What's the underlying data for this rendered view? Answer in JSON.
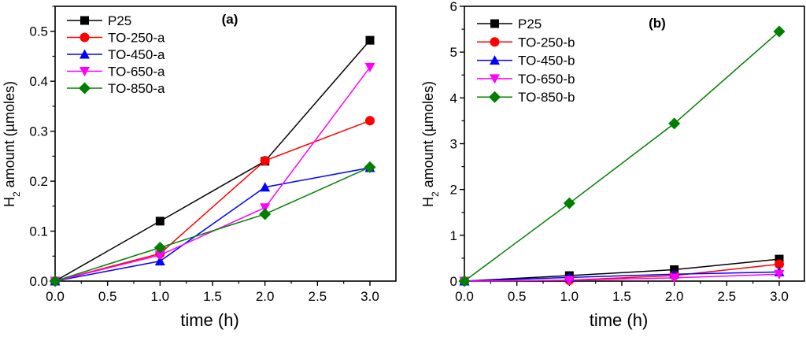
{
  "chart_data": [
    {
      "type": "line",
      "panel_label": "(a)",
      "title": "",
      "xlabel": "time (h)",
      "ylabel_prefix": "H",
      "ylabel_subscript": "2",
      "ylabel_suffix": " amount (µmoles)",
      "xlim": [
        0,
        3.25
      ],
      "ylim": [
        0,
        0.55
      ],
      "xticks": [
        0.0,
        0.5,
        1.0,
        1.5,
        2.0,
        2.5,
        3.0
      ],
      "xtick_labels": [
        "0.0",
        "0.5",
        "1.0",
        "1.5",
        "2.0",
        "2.5",
        "3.0"
      ],
      "yticks": [
        0.0,
        0.1,
        0.2,
        0.3,
        0.4,
        0.5
      ],
      "ytick_labels": [
        "0.0",
        "0.1",
        "0.2",
        "0.3",
        "0.4",
        "0.5"
      ],
      "grid": false,
      "legend_position": "top-left",
      "x": [
        0,
        1,
        2,
        3
      ],
      "series": [
        {
          "name": "P25",
          "color": "#000000",
          "marker": "square",
          "values": [
            0,
            0.12,
            0.24,
            0.482
          ]
        },
        {
          "name": "TO-250-a",
          "color": "#ff0000",
          "marker": "circle",
          "values": [
            0,
            0.055,
            0.241,
            0.321
          ]
        },
        {
          "name": "TO-450-a",
          "color": "#0000ff",
          "marker": "triangle-up",
          "values": [
            0,
            0.04,
            0.188,
            0.227
          ]
        },
        {
          "name": "TO-650-a",
          "color": "#ff00ff",
          "marker": "triangle-down",
          "values": [
            0,
            0.052,
            0.147,
            0.428
          ]
        },
        {
          "name": "TO-850-a",
          "color": "#008000",
          "marker": "diamond",
          "values": [
            0,
            0.067,
            0.134,
            0.228
          ]
        }
      ]
    },
    {
      "type": "line",
      "panel_label": "(b)",
      "title": "",
      "xlabel": "time (h)",
      "ylabel_prefix": "H",
      "ylabel_subscript": "2",
      "ylabel_suffix": " amount (µmoles)",
      "xlim": [
        0,
        3.25
      ],
      "ylim": [
        0,
        6
      ],
      "xticks": [
        0.0,
        0.5,
        1.0,
        1.5,
        2.0,
        2.5,
        3.0
      ],
      "xtick_labels": [
        "0.0",
        "0.5",
        "1.0",
        "1.5",
        "2.0",
        "2.5",
        "3.0"
      ],
      "yticks": [
        0,
        1,
        2,
        3,
        4,
        5,
        6
      ],
      "ytick_labels": [
        "0",
        "1",
        "2",
        "3",
        "4",
        "5",
        "6"
      ],
      "grid": false,
      "legend_position": "top-left",
      "x": [
        0,
        1,
        2,
        3
      ],
      "series": [
        {
          "name": "P25",
          "color": "#000000",
          "marker": "square",
          "values": [
            0,
            0.12,
            0.25,
            0.48
          ]
        },
        {
          "name": "TO-250-b",
          "color": "#ff0000",
          "marker": "circle",
          "values": [
            0,
            0.02,
            0.12,
            0.37
          ]
        },
        {
          "name": "TO-450-b",
          "color": "#0000ff",
          "marker": "triangle-up",
          "values": [
            0,
            0.08,
            0.15,
            0.2
          ]
        },
        {
          "name": "TO-650-b",
          "color": "#ff00ff",
          "marker": "triangle-down",
          "values": [
            0,
            0.02,
            0.07,
            0.15
          ]
        },
        {
          "name": "TO-850-b",
          "color": "#008000",
          "marker": "diamond",
          "values": [
            0,
            1.7,
            3.44,
            5.45
          ]
        }
      ]
    }
  ]
}
